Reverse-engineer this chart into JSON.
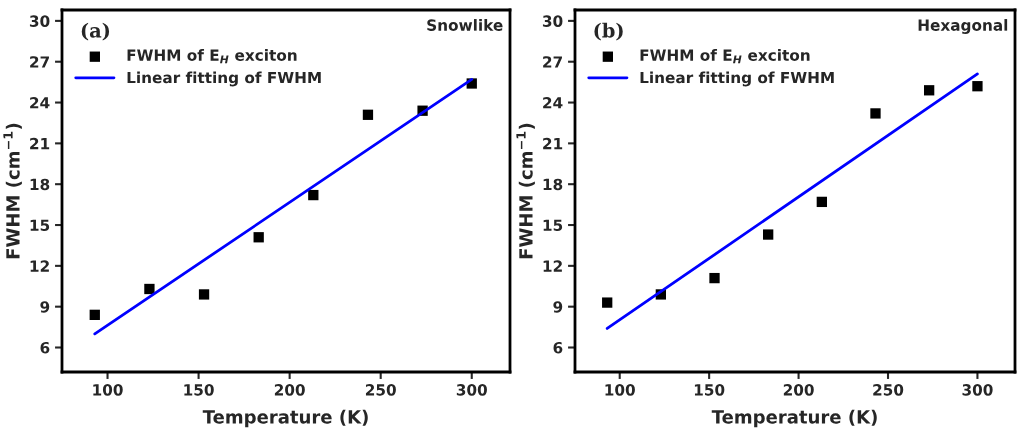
{
  "chart_data": [
    {
      "type": "scatter",
      "xlabel": "Temperature (K)",
      "ylabel": "FWHM (cm$^{−1}$)",
      "annotations": [
        "(a)",
        "Snowlike"
      ],
      "xlim": [
        75,
        321
      ],
      "xticks": [
        100,
        150,
        200,
        250,
        300
      ],
      "ylim": [
        4.2,
        30.8
      ],
      "yticks": [
        6,
        9,
        12,
        15,
        18,
        21,
        24,
        27,
        30
      ],
      "grid": false,
      "legend": "top left",
      "series": [
        {
          "name": "FWHM of E$_{H}$ exciton",
          "color": "#000000",
          "marker": "square",
          "x": [
            93,
            123,
            153,
            183,
            213,
            243,
            273,
            300
          ],
          "values": [
            8.4,
            10.3,
            9.9,
            14.1,
            17.2,
            23.1,
            23.4,
            25.4
          ]
        },
        {
          "name": "Linear fitting of FWHM",
          "type": "line",
          "color": "#0000ff",
          "marker": "none",
          "line_style": "solid",
          "x": [
            93,
            300
          ],
          "values": [
            7.0,
            25.7
          ]
        }
      ]
    },
    {
      "type": "scatter",
      "xlabel": "Temperature (K)",
      "ylabel": "FWHM (cm$^{−1}$)",
      "annotations": [
        "(b)",
        "Hexagonal"
      ],
      "xlim": [
        75,
        321
      ],
      "xticks": [
        100,
        150,
        200,
        250,
        300
      ],
      "ylim": [
        4.2,
        30.8
      ],
      "yticks": [
        6,
        9,
        12,
        15,
        18,
        21,
        24,
        27,
        30
      ],
      "grid": false,
      "legend": "top left",
      "series": [
        {
          "name": "FWHM of E$_{H}$ exciton",
          "color": "#000000",
          "marker": "square",
          "x": [
            93,
            123,
            153,
            183,
            213,
            243,
            273,
            300
          ],
          "values": [
            9.3,
            9.9,
            11.1,
            14.3,
            16.7,
            23.2,
            24.9,
            25.2
          ]
        },
        {
          "name": "Linear fitting of FWHM",
          "type": "line",
          "color": "#0000ff",
          "marker": "none",
          "line_style": "solid",
          "x": [
            93,
            300
          ],
          "values": [
            7.4,
            26.1
          ]
        }
      ]
    }
  ]
}
